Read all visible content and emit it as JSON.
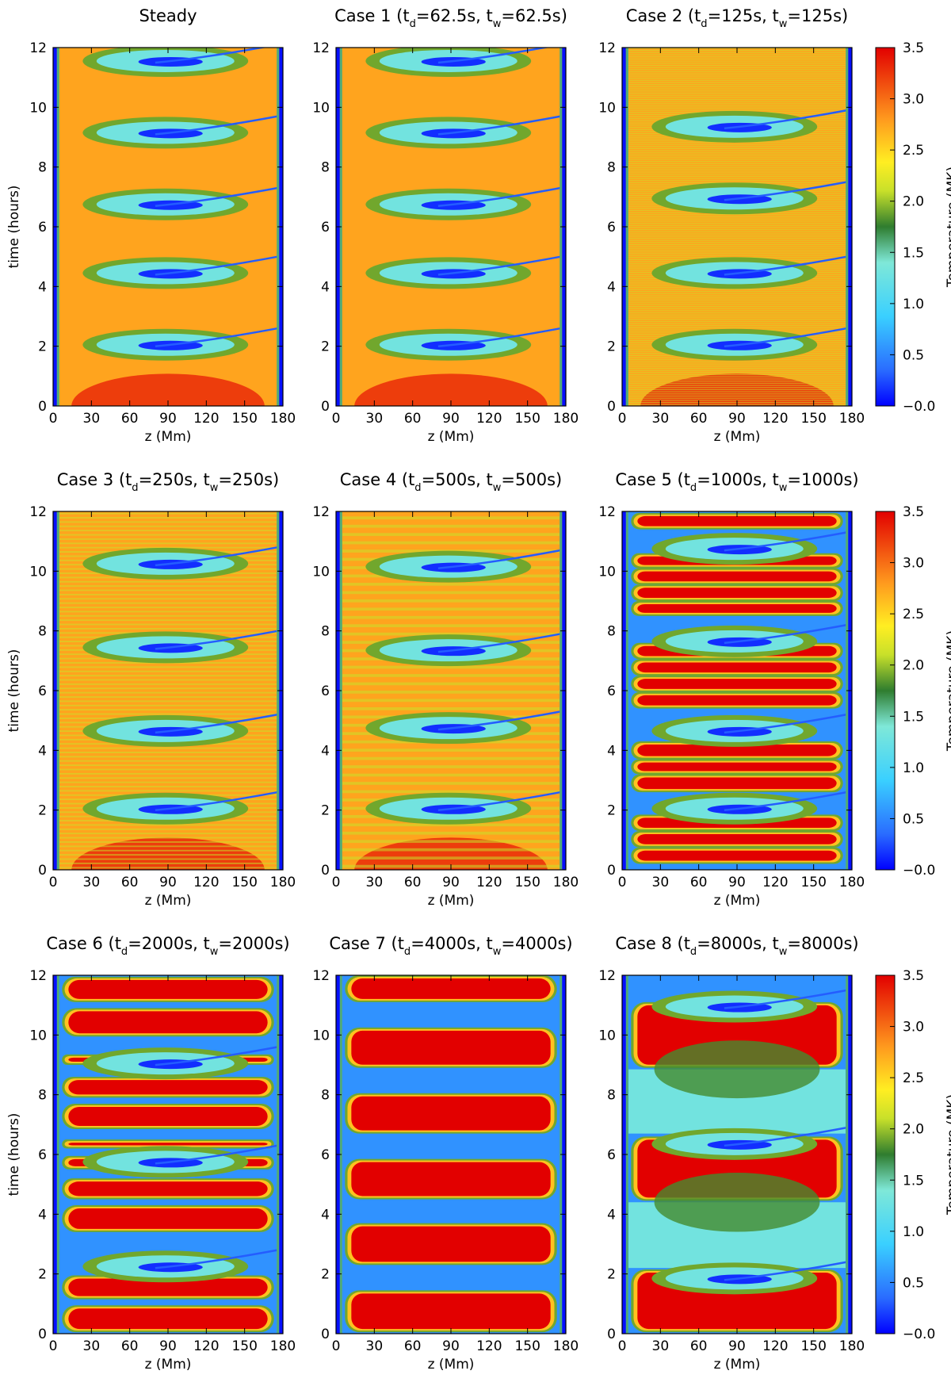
{
  "chart_data": {
    "type": "heatmap",
    "description_units": {
      "x": "z (Mm)",
      "y": "time (hours)",
      "color": "Temperature (MK)"
    },
    "panels": [
      {
        "title": "Steady",
        "xlabel": "z (Mm)",
        "ylabel": "time (hours)",
        "xlim": [
          0,
          180
        ],
        "ylim": [
          0,
          12
        ],
        "x_ticks": [
          "0",
          "30",
          "60",
          "90",
          "120",
          "150",
          "180"
        ],
        "y_ticks": [
          "0",
          "2",
          "4",
          "6",
          "8",
          "10",
          "12"
        ],
        "pattern": {
          "kind": "continuous",
          "strata_per_hour": 0,
          "condensation_times_hours": [
            2.3,
            4.7,
            7.0,
            9.4,
            11.8
          ],
          "hot_bands": [],
          "cold_bands": []
        }
      },
      {
        "title": "Case 1 (t_d=62.5s, t_w=62.5s)",
        "title_parts": [
          {
            "t": "Case 1 (t"
          },
          {
            "sub": "d"
          },
          {
            "t": "=62.5s, t"
          },
          {
            "sub": "w"
          },
          {
            "t": "=62.5s)"
          }
        ],
        "xlabel": "z (Mm)",
        "xlim": [
          0,
          180
        ],
        "ylim": [
          0,
          12
        ],
        "x_ticks": [
          "0",
          "30",
          "60",
          "90",
          "120",
          "150",
          "180"
        ],
        "y_ticks": [
          "0",
          "2",
          "4",
          "6",
          "8",
          "10",
          "12"
        ],
        "pattern": {
          "kind": "continuous",
          "strata_per_hour": 0,
          "condensation_times_hours": [
            2.3,
            4.7,
            7.0,
            9.4,
            11.8
          ],
          "hot_bands": [],
          "cold_bands": []
        }
      },
      {
        "title": "Case 2 (t_d=125s, t_w=125s)",
        "title_parts": [
          {
            "t": "Case 2 (t"
          },
          {
            "sub": "d"
          },
          {
            "t": "=125s, t"
          },
          {
            "sub": "w"
          },
          {
            "t": "=125s)"
          }
        ],
        "xlabel": "z (Mm)",
        "xlim": [
          0,
          180
        ],
        "ylim": [
          0,
          12
        ],
        "x_ticks": [
          "0",
          "30",
          "60",
          "90",
          "120",
          "150",
          "180"
        ],
        "y_ticks": [
          "0",
          "2",
          "4",
          "6",
          "8",
          "10",
          "12"
        ],
        "pattern": {
          "kind": "striated",
          "strata_per_hour": 14,
          "condensation_times_hours": [
            2.3,
            4.7,
            7.2,
            9.6
          ],
          "hot_bands": [],
          "cold_bands": []
        }
      },
      {
        "title": "Case 3 (t_d=250s, t_w=250s)",
        "title_parts": [
          {
            "t": "Case 3 (t"
          },
          {
            "sub": "d"
          },
          {
            "t": "=250s, t"
          },
          {
            "sub": "w"
          },
          {
            "t": "=250s)"
          }
        ],
        "xlabel": "z (Mm)",
        "ylabel": "time (hours)",
        "xlim": [
          0,
          180
        ],
        "ylim": [
          0,
          12
        ],
        "x_ticks": [
          "0",
          "30",
          "60",
          "90",
          "120",
          "150",
          "180"
        ],
        "y_ticks": [
          "0",
          "2",
          "4",
          "6",
          "8",
          "10",
          "12"
        ],
        "pattern": {
          "kind": "striated",
          "strata_per_hour": 7,
          "condensation_times_hours": [
            2.3,
            4.9,
            7.7,
            10.5
          ],
          "hot_bands": [],
          "cold_bands": []
        }
      },
      {
        "title": "Case 4 (t_d=500s, t_w=500s)",
        "title_parts": [
          {
            "t": "Case 4 (t"
          },
          {
            "sub": "d"
          },
          {
            "t": "=500s, t"
          },
          {
            "sub": "w"
          },
          {
            "t": "=500s)"
          }
        ],
        "xlabel": "z (Mm)",
        "xlim": [
          0,
          180
        ],
        "ylim": [
          0,
          12
        ],
        "x_ticks": [
          "0",
          "30",
          "60",
          "90",
          "120",
          "150",
          "180"
        ],
        "y_ticks": [
          "0",
          "2",
          "4",
          "6",
          "8",
          "10",
          "12"
        ],
        "pattern": {
          "kind": "striated",
          "strata_per_hour": 3.6,
          "condensation_times_hours": [
            2.3,
            5.0,
            7.6,
            10.4
          ],
          "hot_bands": [],
          "cold_bands": []
        }
      },
      {
        "title": "Case 5 (t_d=1000s, t_w=1000s)",
        "title_parts": [
          {
            "t": "Case 5 (t"
          },
          {
            "sub": "d"
          },
          {
            "t": "=1000s, t"
          },
          {
            "sub": "w"
          },
          {
            "t": "=1000s)"
          }
        ],
        "xlabel": "z (Mm)",
        "xlim": [
          0,
          180
        ],
        "ylim": [
          0,
          12
        ],
        "x_ticks": [
          "0",
          "30",
          "60",
          "90",
          "120",
          "150",
          "180"
        ],
        "y_ticks": [
          "0",
          "2",
          "4",
          "6",
          "8",
          "10",
          "12"
        ],
        "pattern": {
          "kind": "pulsed",
          "strata_per_hour": 1.8,
          "condensation_times_hours": [
            2.3,
            4.9,
            7.9,
            11.0
          ],
          "hot_bands": [
            [
              0.2,
              0.75
            ],
            [
              0.75,
              1.3
            ],
            [
              1.3,
              1.85
            ],
            [
              2.6,
              3.2
            ],
            [
              3.2,
              3.7
            ],
            [
              3.7,
              4.3
            ],
            [
              5.4,
              5.95
            ],
            [
              5.95,
              6.5
            ],
            [
              6.5,
              7.05
            ],
            [
              7.05,
              7.6
            ],
            [
              8.5,
              9.0
            ],
            [
              9.0,
              9.55
            ],
            [
              9.55,
              10.1
            ],
            [
              10.1,
              10.6
            ],
            [
              11.4,
              11.95
            ]
          ],
          "cold_bands": []
        }
      },
      {
        "title": "Case 6 (t_d=2000s, t_w=2000s)",
        "title_parts": [
          {
            "t": "Case 6 (t"
          },
          {
            "sub": "d"
          },
          {
            "t": "=2000s, t"
          },
          {
            "sub": "w"
          },
          {
            "t": "=2000s)"
          }
        ],
        "xlabel": "z (Mm)",
        "ylabel": "time (hours)",
        "xlim": [
          0,
          180
        ],
        "ylim": [
          0,
          12
        ],
        "x_ticks": [
          "0",
          "30",
          "60",
          "90",
          "120",
          "150",
          "180"
        ],
        "y_ticks": [
          "0",
          "2",
          "4",
          "6",
          "8",
          "10",
          "12"
        ],
        "pattern": {
          "kind": "pulsed",
          "strata_per_hour": 0.9,
          "condensation_times_hours": [
            2.5,
            6.0,
            9.3
          ],
          "hot_bands": [
            [
              0.05,
              0.95
            ],
            [
              1.15,
              1.95
            ],
            [
              3.4,
              4.3
            ],
            [
              4.5,
              5.2
            ],
            [
              5.5,
              5.95
            ],
            [
              6.2,
              6.5
            ],
            [
              6.85,
              7.7
            ],
            [
              7.9,
              8.6
            ],
            [
              9.0,
              9.35
            ],
            [
              9.95,
              10.9
            ],
            [
              11.1,
              11.95
            ]
          ],
          "cold_bands": []
        }
      },
      {
        "title": "Case 7 (t_d=4000s, t_w=4000s)",
        "title_parts": [
          {
            "t": "Case 7 (t"
          },
          {
            "sub": "d"
          },
          {
            "t": "=4000s, t"
          },
          {
            "sub": "w"
          },
          {
            "t": "=4000s)"
          }
        ],
        "xlabel": "z (Mm)",
        "xlim": [
          0,
          180
        ],
        "ylim": [
          0,
          12
        ],
        "x_ticks": [
          "0",
          "30",
          "60",
          "90",
          "120",
          "150",
          "180"
        ],
        "y_ticks": [
          "0",
          "2",
          "4",
          "6",
          "8",
          "10",
          "12"
        ],
        "pattern": {
          "kind": "pulsed",
          "strata_per_hour": 0.45,
          "condensation_times_hours": [],
          "hot_bands": [
            [
              0.05,
              1.45
            ],
            [
              2.3,
              3.7
            ],
            [
              4.5,
              5.85
            ],
            [
              6.7,
              8.05
            ],
            [
              8.9,
              10.25
            ],
            [
              11.1,
              12.0
            ]
          ],
          "cold_bands": []
        }
      },
      {
        "title": "Case 8 (t_d=8000s, t_w=8000s)",
        "title_parts": [
          {
            "t": "Case 8 (t"
          },
          {
            "sub": "d"
          },
          {
            "t": "=8000s, t"
          },
          {
            "sub": "w"
          },
          {
            "t": "=8000s)"
          }
        ],
        "xlabel": "z (Mm)",
        "xlim": [
          0,
          180
        ],
        "ylim": [
          0,
          12
        ],
        "x_ticks": [
          "0",
          "30",
          "60",
          "90",
          "120",
          "150",
          "180"
        ],
        "y_ticks": [
          "0",
          "2",
          "4",
          "6",
          "8",
          "10",
          "12"
        ],
        "pattern": {
          "kind": "pulsed",
          "strata_per_hour": 0.22,
          "condensation_times_hours": [
            2.1,
            6.6,
            11.2
          ],
          "hot_bands": [
            [
              0.05,
              2.15
            ],
            [
              4.45,
              6.6
            ],
            [
              8.9,
              11.1
            ]
          ],
          "cold_bands": [
            [
              2.2,
              4.4
            ],
            [
              6.7,
              8.85
            ]
          ]
        }
      }
    ],
    "colorbar": {
      "label": "Temperature (MK)",
      "range": [
        0.0,
        3.5
      ],
      "ticks": [
        "3.5",
        "3.0",
        "2.5",
        "2.0",
        "1.5",
        "1.0",
        "0.5",
        "−0.0"
      ],
      "colormap": [
        [
          0.0,
          "#0000ff"
        ],
        [
          0.1,
          "#2a6cff"
        ],
        [
          0.25,
          "#3ad0ff"
        ],
        [
          0.4,
          "#7fe8d8"
        ],
        [
          0.5,
          "#2f7d2f"
        ],
        [
          0.6,
          "#c8e02a"
        ],
        [
          0.68,
          "#ffee22"
        ],
        [
          0.8,
          "#ff9a1e"
        ],
        [
          1.0,
          "#e20000"
        ]
      ]
    }
  }
}
